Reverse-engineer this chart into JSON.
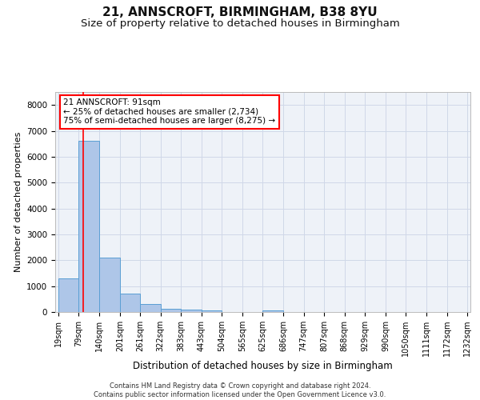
{
  "title1": "21, ANNSCROFT, BIRMINGHAM, B38 8YU",
  "title2": "Size of property relative to detached houses in Birmingham",
  "xlabel": "Distribution of detached houses by size in Birmingham",
  "ylabel": "Number of detached properties",
  "footer_line1": "Contains HM Land Registry data © Crown copyright and database right 2024.",
  "footer_line2": "Contains public sector information licensed under the Open Government Licence v3.0.",
  "annotation_line1": "21 ANNSCROFT: 91sqm",
  "annotation_line2": "← 25% of detached houses are smaller (2,734)",
  "annotation_line3": "75% of semi-detached houses are larger (8,275) →",
  "bar_edges": [
    19,
    79,
    140,
    201,
    261,
    322,
    383,
    443,
    504,
    565,
    625,
    686,
    747,
    807,
    868,
    929,
    990,
    1050,
    1111,
    1172,
    1232
  ],
  "bar_heights": [
    1300,
    6600,
    2100,
    700,
    300,
    130,
    80,
    60,
    0,
    0,
    60,
    0,
    0,
    0,
    0,
    0,
    0,
    0,
    0,
    0
  ],
  "bar_color": "#aec6e8",
  "bar_edge_color": "#5a9fd4",
  "red_line_x": 91,
  "ylim": [
    0,
    8500
  ],
  "yticks": [
    0,
    1000,
    2000,
    3000,
    4000,
    5000,
    6000,
    7000,
    8000
  ],
  "grid_color": "#d0d8e8",
  "bg_color": "#eef2f8",
  "title1_fontsize": 11,
  "title2_fontsize": 9.5,
  "xlabel_fontsize": 8.5,
  "ylabel_fontsize": 8,
  "tick_fontsize": 7,
  "annotation_fontsize": 7.5,
  "footer_fontsize": 6
}
